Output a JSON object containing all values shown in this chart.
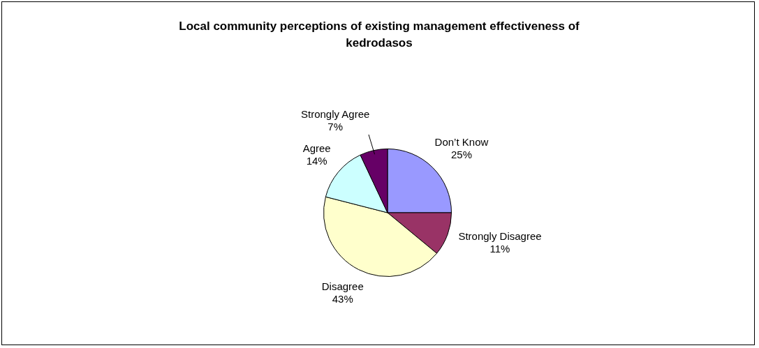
{
  "chart_data": {
    "type": "pie",
    "title": "Local community perceptions of existing management effectiveness of kedrodasos",
    "categories": [
      "Don’t Know",
      "Strongly Disagree",
      "Disagree",
      "Agree",
      "Strongly Agree"
    ],
    "values": [
      25,
      11,
      43,
      14,
      7
    ],
    "colors": [
      "#9999ff",
      "#993366",
      "#ffffcc",
      "#ccffff",
      "#660066"
    ],
    "value_labels": [
      "25%",
      "11%",
      "43%",
      "14%",
      "7%"
    ],
    "legend": false
  }
}
